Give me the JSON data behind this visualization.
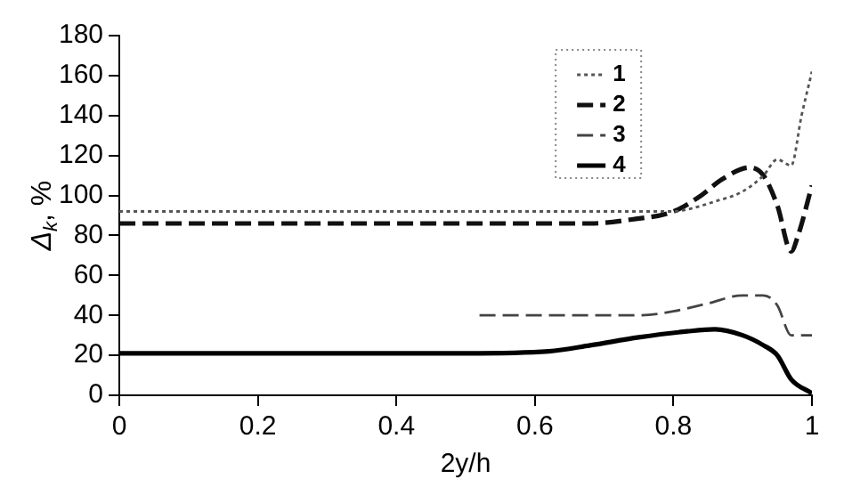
{
  "chart_data": {
    "type": "line",
    "xlabel": "2y/h",
    "ylabel": "Δ$_{k}$, %",
    "xlim": [
      0,
      1
    ],
    "xticks": [
      0,
      0.2,
      0.4,
      0.6,
      0.8,
      1
    ],
    "ylim": [
      0,
      180
    ],
    "yticks": [
      0,
      20,
      40,
      60,
      80,
      100,
      120,
      140,
      160,
      180
    ],
    "grid": false,
    "legend": "top right",
    "marker": "none",
    "series": [
      {
        "name": "1",
        "color": "#555555",
        "line_style": "dotted",
        "x": [
          0,
          0.5,
          0.8,
          0.82,
          0.86,
          0.9,
          0.93,
          0.95,
          0.97,
          0.985,
          1
        ],
        "values": [
          92,
          92,
          92,
          93,
          97,
          102,
          110,
          118,
          115,
          140,
          162
        ]
      },
      {
        "name": "2",
        "color": "#111111",
        "line_style": "dashed",
        "x": [
          0,
          0.5,
          0.68,
          0.74,
          0.8,
          0.84,
          0.87,
          0.91,
          0.93,
          0.95,
          0.97,
          0.98,
          1
        ],
        "values": [
          86,
          86,
          86,
          88,
          92,
          100,
          108,
          114,
          110,
          95,
          72,
          80,
          105
        ]
      },
      {
        "name": "3",
        "color": "#444444",
        "line_style": "dashed",
        "x": [
          0.52,
          0.6,
          0.75,
          0.8,
          0.85,
          0.9,
          0.93,
          0.95,
          0.97,
          1
        ],
        "values": [
          40,
          40,
          40,
          42,
          46,
          50,
          50,
          45,
          30,
          30
        ]
      },
      {
        "name": "4",
        "color": "#000000",
        "line_style": "solid",
        "x": [
          0,
          0.5,
          0.62,
          0.68,
          0.75,
          0.82,
          0.86,
          0.9,
          0.93,
          0.95,
          0.97,
          1
        ],
        "values": [
          21,
          21,
          22,
          25,
          29,
          32,
          33,
          30,
          25,
          20,
          8,
          1
        ]
      }
    ]
  }
}
